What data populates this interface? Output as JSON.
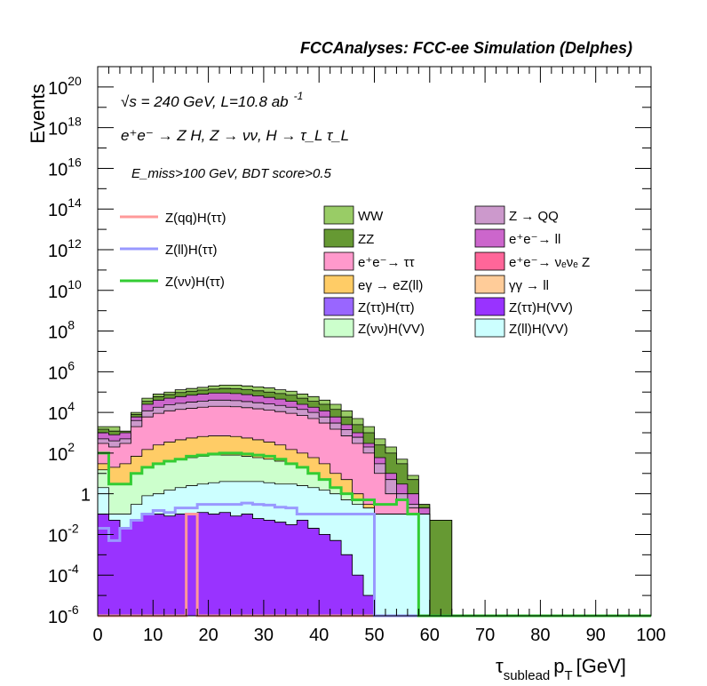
{
  "chart_data": {
    "type": "area",
    "title": "FCCAnalyses: FCC-ee Simulation (Delphes)",
    "xlabel": "τ_sublead p_T [GeV]",
    "xlabel_main": "τ",
    "xlabel_sub": "sublead",
    "xlabel_pt": "p",
    "xlabel_t": "T",
    "xlabel_unit": "[GeV]",
    "ylabel": "Events",
    "y_scale": "log",
    "xlim": [
      0,
      100
    ],
    "ylim": [
      1e-06,
      1e+21
    ],
    "x_ticks": [
      "0",
      "10",
      "20",
      "30",
      "40",
      "50",
      "60",
      "70",
      "80",
      "90",
      "100"
    ],
    "y_ticks": [
      {
        "mant": "10",
        "exp": "-6"
      },
      {
        "mant": "10",
        "exp": "-4"
      },
      {
        "mant": "10",
        "exp": "-2"
      },
      {
        "mant": "1",
        "exp": ""
      },
      {
        "mant": "10",
        "exp": "2"
      },
      {
        "mant": "10",
        "exp": "4"
      },
      {
        "mant": "10",
        "exp": "6"
      },
      {
        "mant": "10",
        "exp": "8"
      },
      {
        "mant": "10",
        "exp": "10"
      },
      {
        "mant": "10",
        "exp": "12"
      },
      {
        "mant": "10",
        "exp": "14"
      },
      {
        "mant": "10",
        "exp": "16"
      },
      {
        "mant": "10",
        "exp": "18"
      },
      {
        "mant": "10",
        "exp": "20"
      }
    ],
    "annotations": {
      "energy_sqrt": "√",
      "energy": "s = 240 GeV, L=10.8 ab",
      "lumi_exp": "-1",
      "process": "e⁺e⁻ → Z H, Z → νν, H → τ_L τ_L",
      "selection": "E_miss>100 GeV, BDT score>0.5"
    },
    "bin_width": 2,
    "stacked_total_top": [
      2000.0,
      2000.0,
      1000.0,
      10000.0,
      50000.0,
      80000.0,
      100000.0,
      130000.0,
      150000.0,
      170000.0,
      200000.0,
      220000.0,
      220000.0,
      200000.0,
      180000.0,
      160000.0,
      130000.0,
      110000.0,
      80000.0,
      60000.0,
      40000.0,
      25000.0,
      12000.0,
      5000.0,
      2000.0,
      500.0,
      200.0,
      50,
      8,
      0.3,
      0.05,
      0.05,
      1e-06,
      1e-06,
      1e-06,
      1e-06,
      1e-06,
      1e-06,
      1e-06,
      1e-06,
      1e-06,
      1e-06,
      1e-06,
      1e-06,
      1e-06,
      1e-06,
      1e-06,
      1e-06,
      1e-06,
      1e-06
    ],
    "stack_order_bottom_to_top": [
      "Z(ττ)H(VV)",
      "Z(ττ)H(ττ)",
      "Z(ll)H(VV)",
      "Z(νν)H(VV)",
      "eγ → eZ(ll)",
      "e⁺e⁻→ ττ",
      "Z → QQ",
      "e⁺e⁻→ ll",
      "ZZ",
      "WW"
    ],
    "stack_cumulative": {
      "Z(ττ)H(VV)": [
        0.1,
        0.05,
        0.02,
        0.05,
        0.1,
        0.1,
        0.08,
        0.1,
        0.1,
        0.12,
        0.1,
        0.12,
        0.08,
        0.1,
        0.06,
        0.05,
        0.04,
        0.03,
        0.05,
        0.02,
        0.01,
        0.005,
        0.001,
        0.0001,
        1e-05,
        1e-06,
        1e-06,
        1e-06,
        1e-06,
        1e-06,
        1e-06,
        1e-06,
        1e-06,
        1e-06,
        1e-06,
        1e-06,
        1e-06,
        1e-06,
        1e-06,
        1e-06,
        1e-06,
        1e-06,
        1e-06,
        1e-06,
        1e-06,
        1e-06,
        1e-06,
        1e-06,
        1e-06,
        1e-06
      ],
      "Z(ττ)H(ττ)": [
        0.1,
        0.05,
        0.02,
        0.05,
        0.1,
        0.1,
        0.08,
        0.1,
        0.1,
        0.12,
        0.1,
        0.12,
        0.08,
        0.1,
        0.06,
        0.05,
        0.04,
        0.03,
        0.05,
        0.02,
        0.01,
        0.005,
        0.001,
        0.0001,
        1e-05,
        1e-06,
        1e-06,
        1e-06,
        1e-06,
        1e-06,
        1e-06,
        1e-06,
        1e-06,
        1e-06,
        1e-06,
        1e-06,
        1e-06,
        1e-06,
        1e-06,
        1e-06,
        1e-06,
        1e-06,
        1e-06,
        1e-06,
        1e-06,
        1e-06,
        1e-06,
        1e-06,
        1e-06,
        1e-06
      ],
      "Z(ll)H(VV)": [
        2,
        0.1,
        0.1,
        0.3,
        0.8,
        1,
        1.5,
        2,
        2.5,
        3,
        3.5,
        4,
        4,
        4,
        4,
        3.5,
        3,
        3,
        2.5,
        2,
        1.5,
        1,
        0.5,
        0.3,
        0.2,
        0.1,
        0.1,
        0.1,
        0.1,
        0.1,
        1e-06,
        1e-06,
        1e-06,
        1e-06,
        1e-06,
        1e-06,
        1e-06,
        1e-06,
        1e-06,
        1e-06,
        1e-06,
        1e-06,
        1e-06,
        1e-06,
        1e-06,
        1e-06,
        1e-06,
        1e-06,
        1e-06,
        1e-06
      ],
      "Z(νν)H(VV)": [
        15,
        3,
        3,
        10,
        20,
        30,
        40,
        50,
        60,
        70,
        80,
        80,
        80,
        70,
        60,
        50,
        40,
        30,
        20,
        10,
        5,
        2,
        1,
        0.5,
        0.1,
        0.1,
        0.1,
        0.1,
        0.1,
        0.1,
        1e-06,
        1e-06,
        1e-06,
        1e-06,
        1e-06,
        1e-06,
        1e-06,
        1e-06,
        1e-06,
        1e-06,
        1e-06,
        1e-06,
        1e-06,
        1e-06,
        1e-06,
        1e-06,
        1e-06,
        1e-06,
        1e-06,
        1e-06
      ],
      "eγ → eZ(ll)": [
        30,
        20,
        30,
        70,
        150,
        250,
        350,
        450,
        550,
        650,
        700,
        700,
        650,
        550,
        450,
        350,
        250,
        150,
        100,
        60,
        30,
        10,
        5,
        1,
        0.3,
        0.1,
        0.1,
        0.1,
        0.1,
        0.1,
        1e-06,
        1e-06,
        1e-06,
        1e-06,
        1e-06,
        1e-06,
        1e-06,
        1e-06,
        1e-06,
        1e-06,
        1e-06,
        1e-06,
        1e-06,
        1e-06,
        1e-06,
        1e-06,
        1e-06,
        1e-06,
        1e-06,
        1e-06
      ],
      "e⁺e⁻→ ττ": [
        300,
        200,
        300,
        2000,
        6000,
        9000,
        12000,
        14000,
        16000,
        18000,
        20000,
        20000,
        19000,
        17000,
        15000,
        13000,
        11000,
        9000,
        7000,
        5000,
        3000,
        1500,
        700,
        300,
        100,
        10,
        1,
        0.5,
        0.2,
        0.1,
        1e-06,
        1e-06,
        1e-06,
        1e-06,
        1e-06,
        1e-06,
        1e-06,
        1e-06,
        1e-06,
        1e-06,
        1e-06,
        1e-06,
        1e-06,
        1e-06,
        1e-06,
        1e-06,
        1e-06,
        1e-06,
        1e-06,
        1e-06
      ],
      "Z → QQ": [
        500,
        400,
        500,
        4000,
        12000,
        18000,
        24000,
        28000,
        32000,
        36000,
        40000,
        40000,
        38000,
        34000,
        30000,
        26000,
        22000,
        18000,
        14000,
        10000,
        6000,
        3000,
        1400,
        600,
        200,
        30,
        5,
        1,
        0.3,
        0.1,
        1e-06,
        1e-06,
        1e-06,
        1e-06,
        1e-06,
        1e-06,
        1e-06,
        1e-06,
        1e-06,
        1e-06,
        1e-06,
        1e-06,
        1e-06,
        1e-06,
        1e-06,
        1e-06,
        1e-06,
        1e-06,
        1e-06,
        1e-06
      ],
      "e⁺e⁻→ ll": [
        1000,
        800,
        1000,
        6000,
        25000,
        40000,
        50000,
        60000,
        70000,
        80000,
        90000,
        90000,
        85000,
        75000,
        65000,
        55000,
        45000,
        35000,
        25000,
        18000,
        12000,
        6000,
        2500,
        1000,
        300,
        60,
        10,
        3,
        1,
        0.2,
        1e-06,
        1e-06,
        1e-06,
        1e-06,
        1e-06,
        1e-06,
        1e-06,
        1e-06,
        1e-06,
        1e-06,
        1e-06,
        1e-06,
        1e-06,
        1e-06,
        1e-06,
        1e-06,
        1e-06,
        1e-06,
        1e-06,
        1e-06
      ],
      "ZZ": [
        1500,
        1200,
        1200,
        8000,
        35000,
        60000,
        75000,
        95000,
        110000,
        125000,
        140000,
        150000,
        145000,
        130000,
        115000,
        100000,
        85000,
        70000,
        50000,
        35000,
        25000,
        14000,
        6000,
        2500,
        1000,
        250,
        100,
        30,
        5,
        0.3,
        0.05,
        0.05,
        1e-06,
        1e-06,
        1e-06,
        1e-06,
        1e-06,
        1e-06,
        1e-06,
        1e-06,
        1e-06,
        1e-06,
        1e-06,
        1e-06,
        1e-06,
        1e-06,
        1e-06,
        1e-06,
        1e-06,
        1e-06
      ],
      "WW": [
        2000.0,
        2000.0,
        1000.0,
        10000.0,
        50000.0,
        80000.0,
        100000.0,
        130000.0,
        150000.0,
        170000.0,
        200000.0,
        220000.0,
        220000.0,
        200000.0,
        180000.0,
        160000.0,
        130000.0,
        110000.0,
        80000.0,
        60000.0,
        40000.0,
        25000.0,
        12000.0,
        5000.0,
        2000.0,
        500.0,
        200.0,
        50,
        8,
        0.3,
        0.05,
        0.05,
        1e-06,
        1e-06,
        1e-06,
        1e-06,
        1e-06,
        1e-06,
        1e-06,
        1e-06,
        1e-06,
        1e-06,
        1e-06,
        1e-06,
        1e-06,
        1e-06,
        1e-06,
        1e-06,
        1e-06,
        1e-06
      ]
    },
    "stack_series": [
      {
        "name": "WW",
        "color": "#99cc66"
      },
      {
        "name": "ZZ",
        "color": "#669933"
      },
      {
        "name": "e⁺e⁻→ ττ",
        "color": "#ff99cc"
      },
      {
        "name": "eγ → eZ(ll)",
        "color": "#ffcc66"
      },
      {
        "name": "Z(ττ)H(ττ)",
        "color": "#9966ff"
      },
      {
        "name": "Z(νν)H(VV)",
        "color": "#ccffcc"
      },
      {
        "name": "Z → QQ",
        "color": "#cc99cc"
      },
      {
        "name": "e⁺e⁻→ ll",
        "color": "#cc66cc"
      },
      {
        "name": "e⁺e⁻→ νₑνₑ Z",
        "color": "#ff6699"
      },
      {
        "name": "γγ → ll",
        "color": "#ffcc99"
      },
      {
        "name": "Z(ττ)H(VV)",
        "color": "#9933ff"
      },
      {
        "name": "Z(ll)H(VV)",
        "color": "#ccffff"
      }
    ],
    "line_series": [
      {
        "name": "Z(qq)H(ττ)",
        "color": "#ff9999",
        "values": [
          1e-06,
          1e-06,
          1e-06,
          1e-06,
          1e-06,
          1e-06,
          1e-06,
          1e-06,
          0.1,
          1e-06,
          1e-06,
          1e-06,
          1e-06,
          1e-06,
          1e-06,
          1e-06,
          1e-06,
          1e-06,
          1e-06,
          1e-06,
          1e-06,
          1e-06,
          1e-06,
          1e-06,
          1e-06,
          1e-06,
          1e-06,
          1e-06,
          1e-06,
          1e-06,
          1e-06,
          1e-06,
          1e-06,
          1e-06,
          1e-06,
          1e-06,
          1e-06,
          1e-06,
          1e-06,
          1e-06,
          1e-06,
          1e-06,
          1e-06,
          1e-06,
          1e-06,
          1e-06,
          1e-06,
          1e-06,
          1e-06,
          1e-06
        ]
      },
      {
        "name": "Z(ll)H(ττ)",
        "color": "#9999ff",
        "values": [
          0.02,
          0.005,
          0.02,
          0.05,
          0.1,
          0.15,
          0.12,
          0.2,
          0.2,
          0.3,
          0.3,
          0.3,
          0.3,
          0.35,
          0.3,
          0.28,
          0.22,
          0.2,
          0.1,
          0.1,
          0.1,
          0.1,
          0.1,
          0.1,
          0.1,
          1e-06,
          1e-06,
          1e-06,
          1e-06,
          1e-06,
          1e-06,
          1e-06,
          1e-06,
          1e-06,
          1e-06,
          1e-06,
          1e-06,
          1e-06,
          1e-06,
          1e-06,
          1e-06,
          1e-06,
          1e-06,
          1e-06,
          1e-06,
          1e-06,
          1e-06,
          1e-06,
          1e-06,
          1e-06
        ]
      },
      {
        "name": "Z(νν)H(ττ)",
        "color": "#33cc33",
        "values": [
          100,
          3,
          3,
          10,
          20,
          30,
          40,
          50,
          70,
          80,
          90,
          100,
          100,
          90,
          80,
          70,
          50,
          30,
          20,
          10,
          5,
          2,
          1,
          0.5,
          0.5,
          0.3,
          0.3,
          0.5,
          0.1,
          1e-06,
          1e-06,
          1e-06,
          1e-06,
          1e-06,
          1e-06,
          1e-06,
          1e-06,
          1e-06,
          1e-06,
          1e-06,
          1e-06,
          1e-06,
          1e-06,
          1e-06,
          1e-06,
          1e-06,
          1e-06,
          1e-06,
          1e-06,
          1e-06
        ]
      }
    ],
    "legend_placement": "top-right",
    "grid": false
  }
}
